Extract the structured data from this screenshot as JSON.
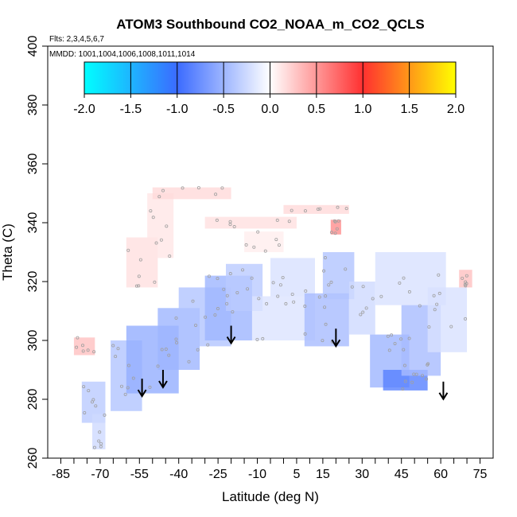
{
  "chart_data": {
    "type": "heatmap",
    "title": "ATOM3 Southbound CO2_NOAA_m_CO2_QCLS",
    "flights_label": "Flts: 2,3,4,5,6,7",
    "dates_label": "MMDD: 1001,1004,1006,1008,1011,1014",
    "xlabel": "Latitude (deg N)",
    "ylabel": "Theta (C)",
    "xlim": [
      -90,
      80
    ],
    "ylim": [
      260,
      400
    ],
    "x_ticks": [
      -85,
      -70,
      -55,
      -40,
      -25,
      -10,
      5,
      15,
      30,
      45,
      60,
      75
    ],
    "x_tick_labels": [
      "-85",
      "-70",
      "-55",
      "-40",
      "-25",
      "-10",
      "5",
      "15",
      "30",
      "45",
      "60",
      "75"
    ],
    "x_minor_ticks": [
      -80,
      -75,
      -65,
      -60,
      -50,
      -45,
      -35,
      -30,
      -20,
      -15,
      -5,
      0,
      10,
      20,
      25,
      35,
      40,
      50,
      55,
      65,
      70
    ],
    "y_ticks": [
      260,
      280,
      300,
      320,
      340,
      360,
      380,
      400
    ],
    "y_tick_labels": [
      "260",
      "280",
      "300",
      "320",
      "340",
      "360",
      "380",
      "400"
    ],
    "colorbar": {
      "min": -2.0,
      "max": 2.0,
      "ticks": [
        -2.0,
        -1.5,
        -1.0,
        -0.5,
        0.0,
        0.5,
        1.0,
        1.5,
        2.0
      ],
      "tick_labels": [
        "-2.0",
        "-1.5",
        "-1.0",
        "-0.5",
        "0.0",
        "0.5",
        "1.0",
        "1.5",
        "2.0"
      ],
      "colors": [
        "#00ffff",
        "#3b6bff",
        "#ffffff",
        "#ff3030",
        "#ffff00"
      ]
    },
    "arrows": [
      {
        "lat": -54,
        "theta": 287
      },
      {
        "lat": -46,
        "theta": 290
      },
      {
        "lat": -20,
        "theta": 305
      },
      {
        "lat": 20,
        "theta": 304
      },
      {
        "lat": 61,
        "theta": 286
      }
    ],
    "regions": [
      {
        "lat": [
          -77,
          -68
        ],
        "theta": [
          272,
          286
        ],
        "value": -0.35
      },
      {
        "lat": [
          -73,
          -68
        ],
        "theta": [
          263,
          275
        ],
        "value": -0.25
      },
      {
        "lat": [
          -80,
          -72
        ],
        "theta": [
          295,
          301
        ],
        "value": 0.3
      },
      {
        "lat": [
          -66,
          -54
        ],
        "theta": [
          276,
          300
        ],
        "value": -0.4
      },
      {
        "lat": [
          -60,
          -40
        ],
        "theta": [
          282,
          305
        ],
        "value": -0.55
      },
      {
        "lat": [
          -48,
          -32
        ],
        "theta": [
          290,
          311
        ],
        "value": -0.5
      },
      {
        "lat": [
          -40,
          -20
        ],
        "theta": [
          298,
          318
        ],
        "value": -0.4
      },
      {
        "lat": [
          -30,
          -12
        ],
        "theta": [
          300,
          322
        ],
        "value": -0.5
      },
      {
        "lat": [
          -22,
          -8
        ],
        "theta": [
          310,
          326
        ],
        "value": -0.35
      },
      {
        "lat": [
          -12,
          12
        ],
        "theta": [
          300,
          315
        ],
        "value": -0.18
      },
      {
        "lat": [
          -5,
          12
        ],
        "theta": [
          315,
          328
        ],
        "value": -0.2
      },
      {
        "lat": [
          8,
          25
        ],
        "theta": [
          298,
          316
        ],
        "value": -0.45
      },
      {
        "lat": [
          15,
          27
        ],
        "theta": [
          314,
          330
        ],
        "value": -0.4
      },
      {
        "lat": [
          25,
          35
        ],
        "theta": [
          302,
          320
        ],
        "value": -0.25
      },
      {
        "lat": [
          33,
          48
        ],
        "theta": [
          284,
          302
        ],
        "value": -0.5
      },
      {
        "lat": [
          38,
          55
        ],
        "theta": [
          283,
          290
        ],
        "value": -0.85
      },
      {
        "lat": [
          45,
          60
        ],
        "theta": [
          288,
          312
        ],
        "value": -0.45
      },
      {
        "lat": [
          55,
          70
        ],
        "theta": [
          296,
          318
        ],
        "value": -0.2
      },
      {
        "lat": [
          35,
          62
        ],
        "theta": [
          312,
          330
        ],
        "value": -0.2
      },
      {
        "lat": [
          -60,
          -48
        ],
        "theta": [
          318,
          335
        ],
        "value": 0.15
      },
      {
        "lat": [
          -52,
          -42
        ],
        "theta": [
          328,
          350
        ],
        "value": 0.12
      },
      {
        "lat": [
          -50,
          -20
        ],
        "theta": [
          348,
          352
        ],
        "value": 0.18
      },
      {
        "lat": [
          -30,
          5
        ],
        "theta": [
          338,
          342
        ],
        "value": 0.15
      },
      {
        "lat": [
          0,
          25
        ],
        "theta": [
          343,
          346
        ],
        "value": 0.18
      },
      {
        "lat": [
          18,
          22
        ],
        "theta": [
          336,
          341
        ],
        "value": 0.55
      },
      {
        "lat": [
          -15,
          0
        ],
        "theta": [
          330,
          337
        ],
        "value": 0.08
      },
      {
        "lat": [
          67,
          72
        ],
        "theta": [
          318,
          324
        ],
        "value": 0.3
      }
    ]
  }
}
